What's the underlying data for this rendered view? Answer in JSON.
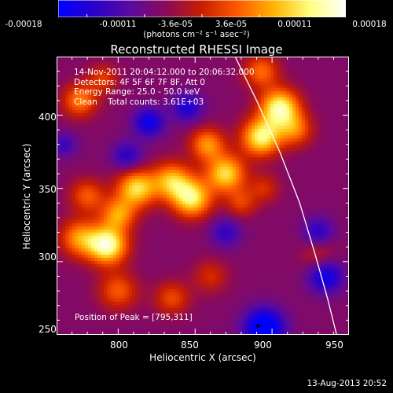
{
  "colorbar": {
    "ticks": [
      "-0.00018",
      "-0.00011",
      "-3.6e-05",
      "3.6e-05",
      "0.00011",
      "0.00018"
    ],
    "units": "(photons cm⁻² s⁻¹ asec⁻²)",
    "stops": [
      "#0000ff",
      "#2a00c8",
      "#5a0aa0",
      "#8a0a5a",
      "#c81e00",
      "#ff5a00",
      "#ffb400",
      "#ffff80",
      "#ffffff"
    ]
  },
  "chart_data": {
    "type": "heatmap",
    "title": "Reconstructed RHESSI Image",
    "xlabel": "Heliocentric X (arcsec)",
    "ylabel": "Heliocentric Y (arcsec)",
    "xlim": [
      760,
      950
    ],
    "ylim": [
      250,
      440
    ],
    "x_ticks": [
      800,
      850,
      900,
      950
    ],
    "y_ticks": [
      250,
      300,
      350,
      400
    ],
    "colorbar_range": [
      -0.00018,
      0.00018
    ],
    "annotations": [
      "14-Nov-2011 20:04:12.000 to 20:06:32.000",
      "Detectors: 4F 5F 6F 7F 8F, Att 0",
      "Energy Range: 25.0 - 50.0 keV",
      "Clean    Total counts: 3.61E+03"
    ],
    "peak_label": "Position of Peak = [795,311]",
    "peak": [
      795,
      311
    ],
    "limb_curve": [
      [
        876,
        440
      ],
      [
        890,
        410
      ],
      [
        905,
        375
      ],
      [
        918,
        340
      ],
      [
        928,
        305
      ],
      [
        936,
        275
      ],
      [
        942,
        250
      ]
    ],
    "sources": [
      {
        "x": 793,
        "y": 311,
        "amp": 1.0,
        "s": 9
      },
      {
        "x": 775,
        "y": 316,
        "amp": 0.6,
        "s": 9
      },
      {
        "x": 800,
        "y": 332,
        "amp": 0.6,
        "s": 8
      },
      {
        "x": 780,
        "y": 345,
        "amp": 0.45,
        "s": 8
      },
      {
        "x": 812,
        "y": 350,
        "amp": 0.8,
        "s": 9
      },
      {
        "x": 835,
        "y": 355,
        "amp": 0.7,
        "s": 9
      },
      {
        "x": 848,
        "y": 343,
        "amp": 0.85,
        "s": 9
      },
      {
        "x": 870,
        "y": 360,
        "amp": 0.8,
        "s": 9
      },
      {
        "x": 858,
        "y": 380,
        "amp": 0.6,
        "s": 8
      },
      {
        "x": 893,
        "y": 385,
        "amp": 0.9,
        "s": 9
      },
      {
        "x": 905,
        "y": 405,
        "amp": 0.95,
        "s": 9
      },
      {
        "x": 915,
        "y": 390,
        "amp": 0.5,
        "s": 8
      },
      {
        "x": 893,
        "y": 430,
        "amp": 0.5,
        "s": 8
      },
      {
        "x": 775,
        "y": 410,
        "amp": 0.55,
        "s": 8
      },
      {
        "x": 790,
        "y": 425,
        "amp": 0.35,
        "s": 7
      },
      {
        "x": 800,
        "y": 280,
        "amp": 0.45,
        "s": 9
      },
      {
        "x": 835,
        "y": 275,
        "amp": 0.4,
        "s": 8
      },
      {
        "x": 860,
        "y": 290,
        "amp": 0.3,
        "s": 8
      },
      {
        "x": 880,
        "y": 340,
        "amp": 0.35,
        "s": 7
      },
      {
        "x": 895,
        "y": 350,
        "amp": 0.3,
        "s": 7
      },
      {
        "x": 930,
        "y": 305,
        "amp": 0.25,
        "s": 8
      },
      {
        "x": 820,
        "y": 395,
        "amp": -0.55,
        "s": 7
      },
      {
        "x": 806,
        "y": 372,
        "amp": -0.4,
        "s": 7
      },
      {
        "x": 845,
        "y": 405,
        "amp": -0.45,
        "s": 7
      },
      {
        "x": 895,
        "y": 255,
        "amp": -0.8,
        "s": 9
      },
      {
        "x": 935,
        "y": 290,
        "amp": -0.55,
        "s": 8
      },
      {
        "x": 930,
        "y": 320,
        "amp": -0.4,
        "s": 7
      },
      {
        "x": 870,
        "y": 320,
        "amp": -0.35,
        "s": 7
      },
      {
        "x": 765,
        "y": 380,
        "amp": -0.3,
        "s": 6
      }
    ]
  },
  "timestamp": "13-Aug-2013 20:52"
}
